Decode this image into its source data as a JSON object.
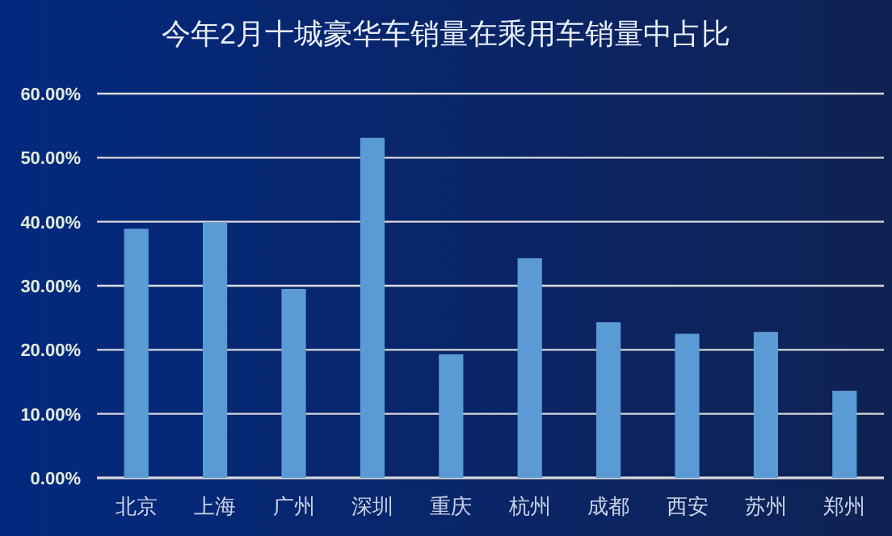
{
  "chart_data": {
    "type": "bar",
    "title": "今年2月十城豪华车销量在乘用车销量中占比",
    "categories": [
      "北京",
      "上海",
      "广州",
      "深圳",
      "重庆",
      "杭州",
      "成都",
      "西安",
      "苏州",
      "郑州"
    ],
    "values": [
      38.9,
      39.9,
      29.5,
      53.1,
      19.3,
      34.3,
      24.3,
      22.5,
      22.8,
      13.6
    ],
    "color": "#5b9bd5",
    "ylim": [
      0,
      60
    ],
    "yticks": [
      {
        "value": 0,
        "label": "0.00%"
      },
      {
        "value": 10,
        "label": "10.00%"
      },
      {
        "value": 20,
        "label": "20.00%"
      },
      {
        "value": 30,
        "label": "30.00%"
      },
      {
        "value": 40,
        "label": "40.00%"
      },
      {
        "value": 50,
        "label": "50.00%"
      },
      {
        "value": 60,
        "label": "60.00%"
      }
    ],
    "grid": "y"
  }
}
